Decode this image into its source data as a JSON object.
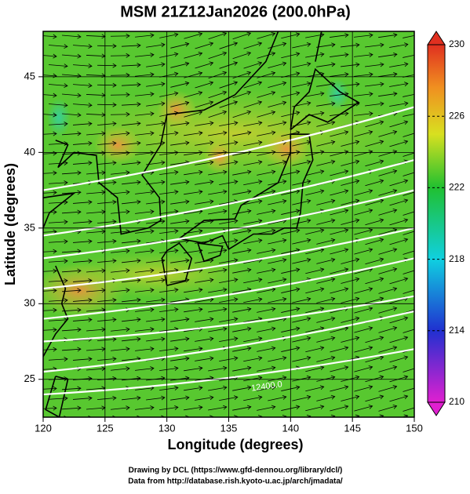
{
  "title": "MSM 21Z12Jan2026 (200.0hPa)",
  "x_axis": {
    "label": "Longitude (degrees)",
    "lim": [
      120,
      150
    ],
    "ticks": [
      120,
      125,
      130,
      135,
      140,
      145,
      150
    ]
  },
  "y_axis": {
    "label": "Latitude  (degrees)",
    "lim": [
      22.5,
      48
    ],
    "ticks": [
      25,
      30,
      35,
      40,
      45
    ]
  },
  "colorbar": {
    "lim": [
      210,
      230
    ],
    "ticks": [
      210,
      214,
      218,
      222,
      226,
      230
    ]
  },
  "contour_labels": [
    "12400.0"
  ],
  "footer": [
    "Drawing by DCL (https://www.gfd-dennou.org/library/dcl/)",
    "Data from http://database.rish.kyoto-u.ac.jp/arch/jmadata/"
  ]
}
